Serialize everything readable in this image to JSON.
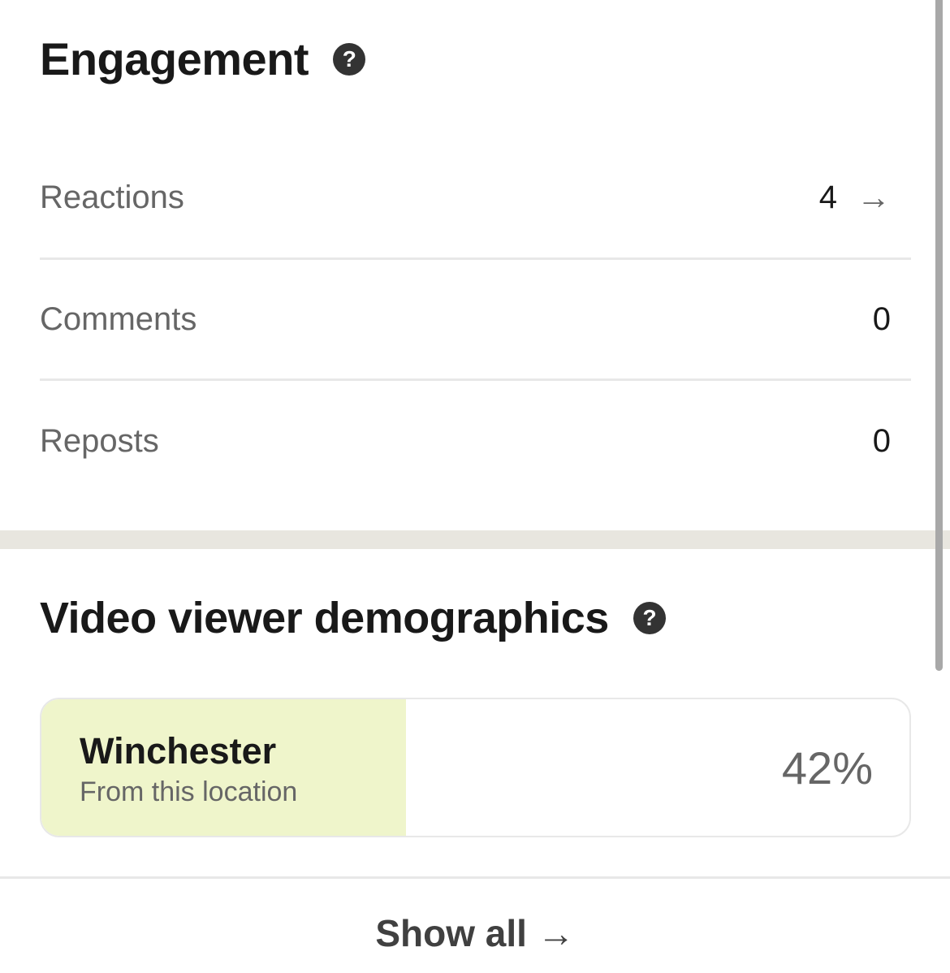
{
  "engagement": {
    "title": "Engagement",
    "help_icon": "?",
    "rows": [
      {
        "label": "Reactions",
        "value": "4",
        "arrow": "→"
      },
      {
        "label": "Comments",
        "value": "0"
      },
      {
        "label": "Reposts",
        "value": "0"
      }
    ]
  },
  "demographics": {
    "title": "Video viewer demographics",
    "help_icon": "?",
    "item": {
      "name": "Winchester",
      "subtitle": "From this location",
      "percent_label": "42%",
      "percent": 42,
      "fill_color": "#eff5cb"
    },
    "show_all": "Show all",
    "show_all_arrow": "→"
  }
}
